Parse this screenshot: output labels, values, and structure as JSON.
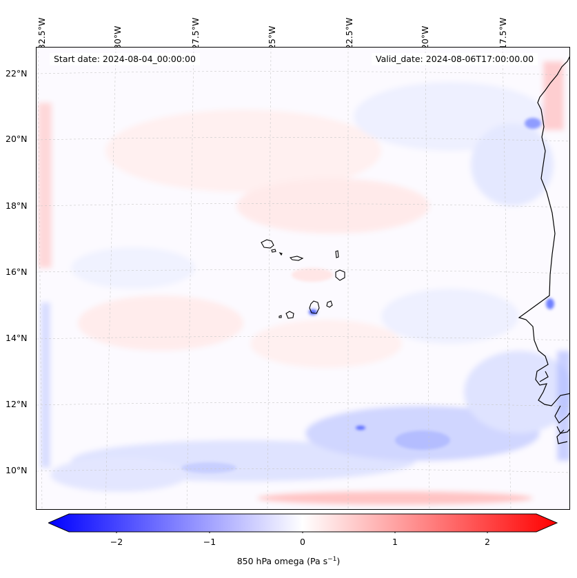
{
  "map": {
    "start_date": "Start date: 2024-08-04_00:00:00",
    "valid_date": "Valid_date: 2024-08-06T17:00:00.00",
    "lon_labels": [
      "32.5°W",
      "30°W",
      "27.5°W",
      "25°W",
      "22.5°W",
      "20°W",
      "17.5°W"
    ],
    "lat_labels": [
      "22°N",
      "20°N",
      "18°N",
      "16°N",
      "14°N",
      "12°N",
      "10°N"
    ],
    "colors": {
      "negative": "#0000ff",
      "zero": "#ffffff",
      "positive": "#ff0000",
      "coast": "#000000",
      "grid": "#c8c8c8"
    }
  },
  "colorbar": {
    "label_main": "850 hPa omega (Pa s",
    "label_exp": "−1",
    "label_close": ")",
    "ticks": [
      "−2",
      "−1",
      "0",
      "1",
      "2"
    ],
    "range": [
      -2.75,
      2.75
    ]
  }
}
